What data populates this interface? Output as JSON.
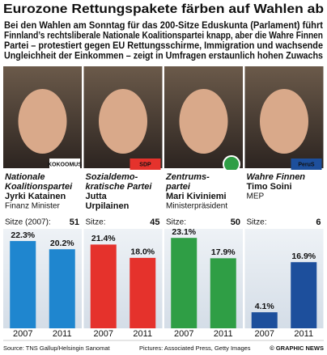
{
  "title": "Eurozone Rettungspakete färben auf Wahlen ab",
  "intro": [
    "Bei den Wahlen am Sonntag für das 200-Sitze Eduskunta (Parlament) führt",
    "Finnland’s rechtsliberale Nationale Koalitionspartei knapp, aber die Wahre Finnen",
    "Partei – protestiert gegen EU Rettungsschirme, Immigration und wachsende",
    "Ungleichheit der Einkommen – zeigt in Umfragen erstaunlich hohen Zuwachs"
  ],
  "chart_data": [
    {
      "type": "bar",
      "logo": "KOKOOMUS",
      "party": [
        "Nationale",
        "Koalitionspartei"
      ],
      "person": [
        "Jyrki Katainen"
      ],
      "role": "Finanz Minister",
      "seats_label": "Sitze (2007):",
      "seats": 51,
      "categories": [
        "2007",
        "2011"
      ],
      "values": [
        22.3,
        20.2
      ],
      "value_labels": [
        "22.3%",
        "20.2%"
      ],
      "color": "#1f86cf",
      "ylim": [
        0,
        25
      ]
    },
    {
      "type": "bar",
      "logo": "SDP",
      "party": [
        "Sozialdemo-",
        "kratische Partei"
      ],
      "person": [
        "Jutta",
        "Urpilainen"
      ],
      "seats_label": "Sitze:",
      "seats": 45,
      "categories": [
        "2007",
        "2011"
      ],
      "values": [
        21.4,
        18.0
      ],
      "value_labels": [
        "21.4%",
        "18.0%"
      ],
      "color": "#e5322c",
      "ylim": [
        0,
        25
      ]
    },
    {
      "type": "bar",
      "party": [
        "Zentrums-",
        "partei"
      ],
      "person": [
        "Mari Kiviniemi"
      ],
      "role": "Ministerpräsident",
      "seats_label": "Sitze:",
      "seats": 50,
      "categories": [
        "2007",
        "2011"
      ],
      "values": [
        23.1,
        17.9
      ],
      "value_labels": [
        "23.1%",
        "17.9%"
      ],
      "color": "#2f9e45",
      "ylim": [
        0,
        25
      ]
    },
    {
      "type": "bar",
      "logo": "PeruS",
      "party": [
        "Wahre Finnen"
      ],
      "person": [
        "Timo Soini"
      ],
      "role": "MEP",
      "seats_label": "Sitze:",
      "seats": 6,
      "categories": [
        "2007",
        "2011"
      ],
      "values": [
        4.1,
        16.9
      ],
      "value_labels": [
        "4.1%",
        "16.9%"
      ],
      "color": "#1d4f9c",
      "ylim": [
        0,
        25
      ]
    }
  ],
  "footer": {
    "source": "Source: TNS Gallup/Helsingin Sanomat",
    "pictures": "Pictures: Associated Press, Getty Images",
    "brand": "© GRAPHIC NEWS"
  }
}
